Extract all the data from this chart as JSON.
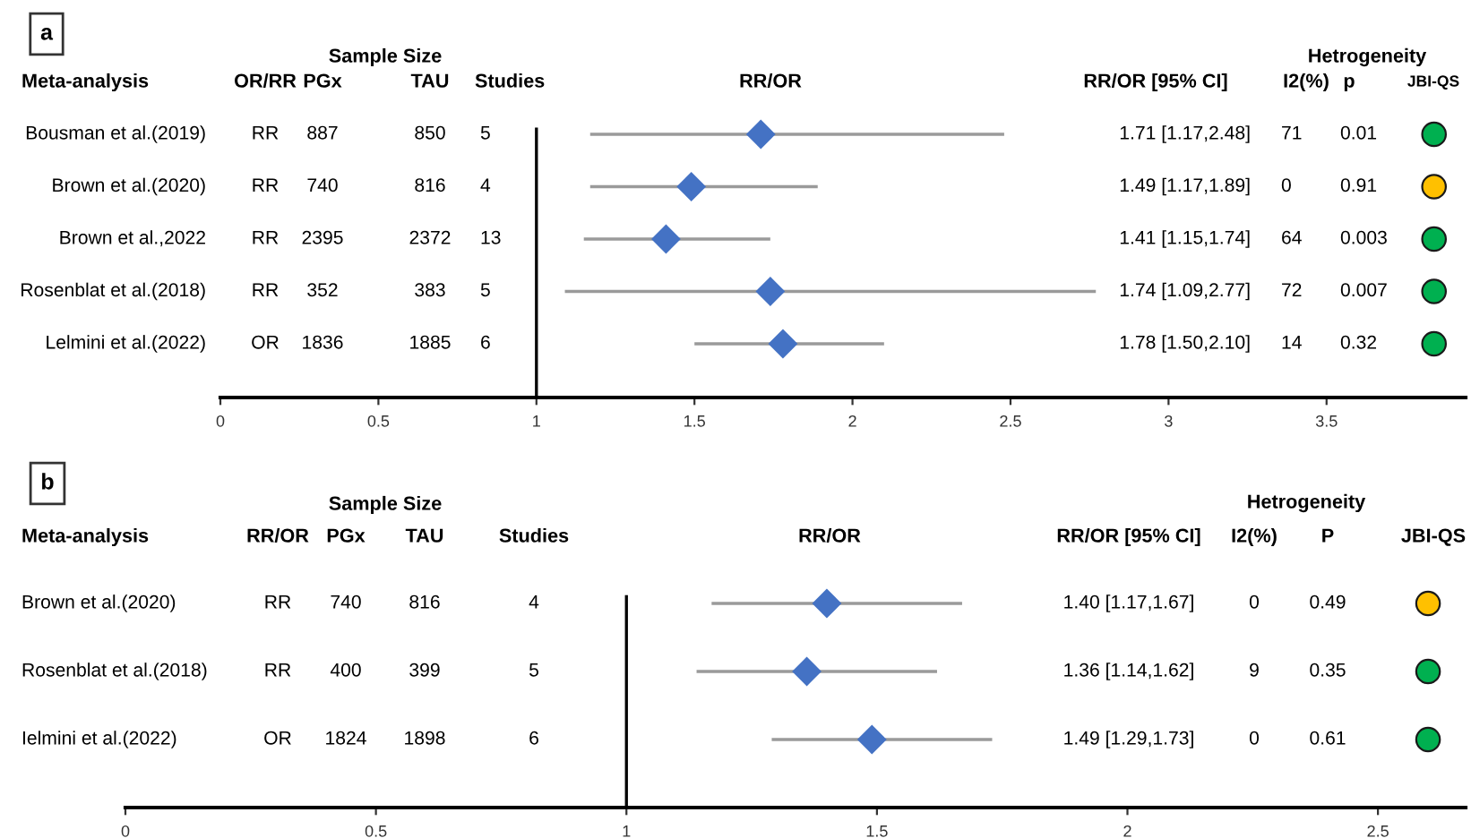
{
  "chart_data": [
    {
      "type": "scatter",
      "orientation": "horizontal",
      "legend": false,
      "grid": false,
      "categories": [
        "Bousman et al.(2019)",
        "Brown et al.(2020)",
        "Brown et al.,2022",
        "Rosenblat et al.(2018)",
        "Lelmini et al.(2022)"
      ],
      "series": [
        {
          "marker": "diamond",
          "color": "#4472c4",
          "values": [
            1.71,
            1.49,
            1.41,
            1.74,
            1.78
          ],
          "errors": [
            [
              1.17,
              2.48
            ],
            [
              1.17,
              1.89
            ],
            [
              1.15,
              1.74
            ],
            [
              1.09,
              2.77
            ],
            [
              1.5,
              2.1
            ]
          ]
        },
        {
          "marker": "circle",
          "colors": [
            "#00b050",
            "#ffc000",
            "#00b050",
            "#00b050",
            "#00b050"
          ],
          "values": [
            3.84,
            3.84,
            3.84,
            3.84,
            3.84
          ]
        }
      ],
      "xlim": [
        0,
        3.94
      ],
      "xticks": [
        0,
        0.5,
        1,
        1.5,
        2,
        2.5,
        3,
        3.5
      ],
      "ref_lines": [
        {
          "axis": "x",
          "value": 1,
          "color": "#000000"
        }
      ],
      "annotations": [
        "a",
        "Sample Size",
        "Hetrogeneity",
        "Meta-analysis",
        "OR/RR",
        "PGx",
        "TAU",
        "Studies",
        "RR/OR",
        "RR/OR [95% CI]",
        "I2(%)",
        "p",
        "JBI-QS",
        "RR",
        "887",
        "850",
        "5",
        "1.71 [1.17,2.48]",
        "71",
        "0.01",
        "RR",
        "740",
        "816",
        "4",
        "1.49 [1.17,1.89]",
        "0",
        "0.91",
        "RR",
        "2395",
        "2372",
        "13",
        "1.41 [1.15,1.74]",
        "64",
        "0.003",
        "RR",
        "352",
        "383",
        "5",
        "1.74 [1.09,2.77]",
        "72",
        "0.007",
        "OR",
        "1836",
        "1885",
        "6",
        "1.78 [1.50,2.10]",
        "14",
        "0.32"
      ]
    },
    {
      "type": "scatter",
      "orientation": "horizontal",
      "legend": false,
      "grid": false,
      "categories": [
        "Brown et al.(2020)",
        "Rosenblat et al.(2018)",
        "Ielmini et al.(2022)"
      ],
      "series": [
        {
          "marker": "diamond",
          "color": "#4472c4",
          "values": [
            1.4,
            1.36,
            1.49
          ],
          "errors": [
            [
              1.17,
              1.67
            ],
            [
              1.14,
              1.62
            ],
            [
              1.29,
              1.73
            ]
          ]
        },
        {
          "marker": "circle",
          "colors": [
            "#ffc000",
            "#00b050",
            "#00b050"
          ],
          "values": [
            2.6,
            2.6,
            2.6
          ]
        }
      ],
      "xlim": [
        0,
        2.675
      ],
      "xticks": [
        0,
        0.5,
        1,
        1.5,
        2,
        2.5
      ],
      "ref_lines": [
        {
          "axis": "x",
          "value": 1,
          "color": "#000000"
        }
      ],
      "annotations": [
        "b",
        "Sample Size",
        "Hetrogeneity",
        "Meta-analysis",
        "RR/OR",
        "PGx",
        "TAU",
        "Studies",
        "RR/OR",
        "RR/OR [95% CI]",
        "I2(%)",
        "P",
        "JBI-QS",
        "RR",
        "740",
        "816",
        "4",
        "1.40 [1.17,1.67]",
        "0",
        "0.49",
        "RR",
        "400",
        "399",
        "5",
        "1.36 [1.14,1.62]",
        "9",
        "0.35",
        "OR",
        "1824",
        "1898",
        "6",
        "1.49 [1.29,1.73]",
        "0",
        "0.61"
      ]
    }
  ]
}
